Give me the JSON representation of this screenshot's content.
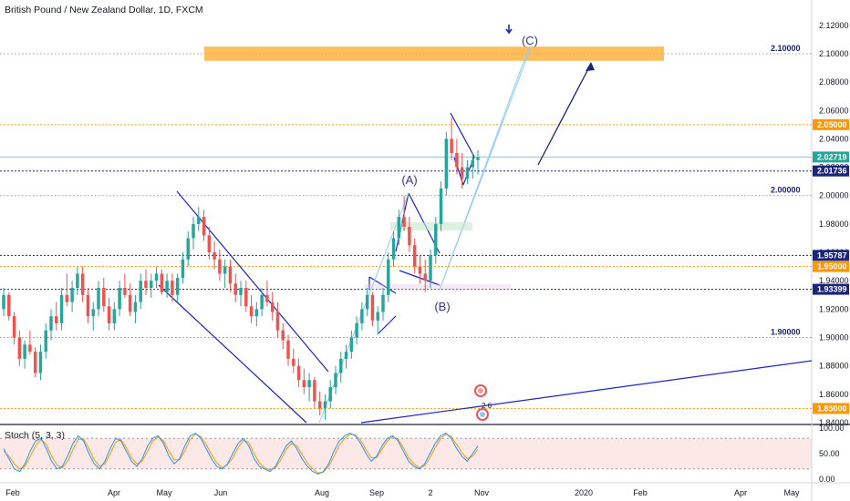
{
  "header": {
    "title": "British Pound / New Zealand Dollar, 1D, FXCM"
  },
  "colors": {
    "bull": "#26a69a",
    "bear": "#ef5350",
    "grid": "#9598a1",
    "orange": "#ff9800",
    "navy": "#1a237e",
    "blue_line": "#1c24c9",
    "light_blue": "#90caf9",
    "stoch_k": "#2196f3",
    "stoch_d": "#ff9800",
    "stoch_band": "#fde8e8"
  },
  "chart_data": {
    "type": "candlestick",
    "instrument": "British Pound / New Zealand Dollar",
    "interval": "1D",
    "source": "FXCM",
    "ylim": [
      1.84,
      2.125
    ],
    "y_ticks": [
      "2.12000",
      "2.10000",
      "2.08000",
      "2.06000",
      "2.04000",
      "2.02000",
      "2.00000",
      "1.98000",
      "1.96000",
      "1.94000",
      "1.92000",
      "1.90000",
      "1.88000",
      "1.86000",
      "1.84000"
    ],
    "x_tick_labels": [
      "Feb",
      "Apr",
      "May",
      "Jun",
      "Aug",
      "Sep",
      "2",
      "Nov",
      "2020",
      "Feb",
      "Apr",
      "May"
    ],
    "horizontal_levels": [
      {
        "value": 2.1,
        "label": "2.10000",
        "style": "dotted-gray",
        "tag": "plain"
      },
      {
        "value": 2.05,
        "label": "2.05000",
        "style": "dotted-orange",
        "tag": "orange"
      },
      {
        "value": 2.02719,
        "label": "2.02719",
        "style": "solid-teal",
        "tag": "teal"
      },
      {
        "value": 2.01736,
        "label": "2.01736",
        "style": "dotted-navy",
        "tag": "navy"
      },
      {
        "value": 2.0,
        "label": "2.00000",
        "style": "dotted-gray",
        "tag": "plain"
      },
      {
        "value": 1.95787,
        "label": "1.95787",
        "style": "dotted-navy",
        "tag": "navy"
      },
      {
        "value": 1.95,
        "label": "1.95000",
        "style": "dotted-orange",
        "tag": "orange"
      },
      {
        "value": 1.93399,
        "label": "1.93399",
        "style": "dotted-navy",
        "tag": "navy"
      },
      {
        "value": 1.9,
        "label": "1.90000",
        "style": "dotted-gray",
        "tag": "plain"
      },
      {
        "value": 1.85,
        "label": "1.85000",
        "style": "dotted-orange",
        "tag": "orange"
      }
    ],
    "target_zone": {
      "y_top": 2.105,
      "y_bottom": 2.095
    },
    "wave_labels": [
      {
        "text": "(A)",
        "price": 2.01
      },
      {
        "text": "(B)",
        "price": 1.92
      },
      {
        "text": "(C)",
        "price": 2.108
      }
    ],
    "extra_label": "2 6",
    "candles_ohlc": [
      [
        1.92,
        1.935,
        1.915,
        1.93
      ],
      [
        1.93,
        1.932,
        1.912,
        1.915
      ],
      [
        1.915,
        1.918,
        1.895,
        1.9
      ],
      [
        1.9,
        1.905,
        1.88,
        1.885
      ],
      [
        1.885,
        1.898,
        1.878,
        1.895
      ],
      [
        1.895,
        1.905,
        1.888,
        1.89
      ],
      [
        1.89,
        1.893,
        1.872,
        1.875
      ],
      [
        1.875,
        1.895,
        1.87,
        1.89
      ],
      [
        1.89,
        1.91,
        1.885,
        1.905
      ],
      [
        1.905,
        1.92,
        1.898,
        1.915
      ],
      [
        1.915,
        1.925,
        1.905,
        1.91
      ],
      [
        1.91,
        1.935,
        1.905,
        1.93
      ],
      [
        1.93,
        1.945,
        1.922,
        1.925
      ],
      [
        1.925,
        1.94,
        1.918,
        1.935
      ],
      [
        1.935,
        1.95,
        1.93,
        1.945
      ],
      [
        1.945,
        1.95,
        1.925,
        1.93
      ],
      [
        1.93,
        1.935,
        1.91,
        1.915
      ],
      [
        1.915,
        1.925,
        1.905,
        1.92
      ],
      [
        1.92,
        1.94,
        1.915,
        1.935
      ],
      [
        1.935,
        1.942,
        1.918,
        1.922
      ],
      [
        1.922,
        1.928,
        1.905,
        1.91
      ],
      [
        1.91,
        1.925,
        1.905,
        1.92
      ],
      [
        1.92,
        1.94,
        1.915,
        1.935
      ],
      [
        1.935,
        1.945,
        1.928,
        1.93
      ],
      [
        1.93,
        1.938,
        1.915,
        1.918
      ],
      [
        1.918,
        1.93,
        1.91,
        1.925
      ],
      [
        1.925,
        1.945,
        1.92,
        1.94
      ],
      [
        1.94,
        1.948,
        1.93,
        1.935
      ],
      [
        1.935,
        1.945,
        1.928,
        1.94
      ],
      [
        1.94,
        1.95,
        1.935,
        1.945
      ],
      [
        1.945,
        1.948,
        1.93,
        1.932
      ],
      [
        1.932,
        1.945,
        1.928,
        1.94
      ],
      [
        1.94,
        1.945,
        1.925,
        1.93
      ],
      [
        1.93,
        1.945,
        1.925,
        1.942
      ],
      [
        1.942,
        1.96,
        1.938,
        1.955
      ],
      [
        1.955,
        1.975,
        1.95,
        1.97
      ],
      [
        1.97,
        1.985,
        1.962,
        1.98
      ],
      [
        1.98,
        1.992,
        1.975,
        1.985
      ],
      [
        1.985,
        1.99,
        1.968,
        1.972
      ],
      [
        1.972,
        1.978,
        1.955,
        1.96
      ],
      [
        1.96,
        1.968,
        1.948,
        1.955
      ],
      [
        1.955,
        1.962,
        1.94,
        1.945
      ],
      [
        1.945,
        1.955,
        1.935,
        1.95
      ],
      [
        1.95,
        1.955,
        1.932,
        1.938
      ],
      [
        1.938,
        1.945,
        1.925,
        1.93
      ],
      [
        1.93,
        1.94,
        1.922,
        1.935
      ],
      [
        1.935,
        1.94,
        1.918,
        1.922
      ],
      [
        1.922,
        1.93,
        1.91,
        1.915
      ],
      [
        1.915,
        1.925,
        1.908,
        1.92
      ],
      [
        1.92,
        1.935,
        1.915,
        1.93
      ],
      [
        1.93,
        1.94,
        1.922,
        1.925
      ],
      [
        1.925,
        1.932,
        1.912,
        1.918
      ],
      [
        1.918,
        1.925,
        1.9,
        1.905
      ],
      [
        1.905,
        1.91,
        1.892,
        1.898
      ],
      [
        1.898,
        1.902,
        1.88,
        1.885
      ],
      [
        1.885,
        1.892,
        1.875,
        1.88
      ],
      [
        1.88,
        1.885,
        1.865,
        1.87
      ],
      [
        1.87,
        1.878,
        1.86,
        1.865
      ],
      [
        1.865,
        1.875,
        1.855,
        1.87
      ],
      [
        1.87,
        1.872,
        1.85,
        1.855
      ],
      [
        1.855,
        1.862,
        1.845,
        1.85
      ],
      [
        1.85,
        1.86,
        1.842,
        1.855
      ],
      [
        1.855,
        1.87,
        1.85,
        1.865
      ],
      [
        1.865,
        1.88,
        1.86,
        1.875
      ],
      [
        1.875,
        1.89,
        1.868,
        1.885
      ],
      [
        1.885,
        1.895,
        1.878,
        1.89
      ],
      [
        1.89,
        1.905,
        1.885,
        1.9
      ],
      [
        1.9,
        1.915,
        1.895,
        1.91
      ],
      [
        1.91,
        1.925,
        1.905,
        1.92
      ],
      [
        1.92,
        1.935,
        1.915,
        1.93
      ],
      [
        1.93,
        1.932,
        1.908,
        1.912
      ],
      [
        1.912,
        1.922,
        1.902,
        1.918
      ],
      [
        1.918,
        1.935,
        1.912,
        1.93
      ],
      [
        1.93,
        1.96,
        1.925,
        1.955
      ],
      [
        1.955,
        1.975,
        1.95,
        1.97
      ],
      [
        1.97,
        1.99,
        1.965,
        1.985
      ],
      [
        1.985,
        2.0,
        1.975,
        1.978
      ],
      [
        1.978,
        1.985,
        1.96,
        1.965
      ],
      [
        1.965,
        1.97,
        1.945,
        1.95
      ],
      [
        1.95,
        1.958,
        1.938,
        1.945
      ],
      [
        1.945,
        1.955,
        1.932,
        1.94
      ],
      [
        1.94,
        1.962,
        1.935,
        1.958
      ],
      [
        1.958,
        1.985,
        1.952,
        1.98
      ],
      [
        1.98,
        2.01,
        1.975,
        2.005
      ],
      [
        2.005,
        2.045,
        2.0,
        2.04
      ],
      [
        2.04,
        2.055,
        2.025,
        2.03
      ],
      [
        2.03,
        2.04,
        2.015,
        2.02
      ],
      [
        2.02,
        2.03,
        2.005,
        2.012
      ],
      [
        2.012,
        2.025,
        2.008,
        2.02
      ],
      [
        2.02,
        2.03,
        2.012,
        2.025
      ],
      [
        2.025,
        2.032,
        2.015,
        2.027
      ]
    ]
  },
  "stoch": {
    "label": "Stoch (5, 3, 3)",
    "ticks": [
      "100.00",
      "50.00",
      "0.00"
    ],
    "upper": 80,
    "lower": 20,
    "k": [
      60,
      40,
      20,
      15,
      30,
      55,
      75,
      80,
      60,
      35,
      20,
      25,
      45,
      70,
      85,
      75,
      50,
      30,
      20,
      35,
      60,
      80,
      75,
      55,
      35,
      25,
      40,
      65,
      80,
      85,
      70,
      45,
      30,
      40,
      65,
      85,
      90,
      80,
      60,
      40,
      25,
      20,
      30,
      50,
      70,
      80,
      65,
      40,
      25,
      20,
      15,
      25,
      45,
      65,
      75,
      60,
      40,
      25,
      15,
      10,
      15,
      30,
      55,
      75,
      85,
      90,
      85,
      70,
      50,
      35,
      45,
      65,
      80,
      85,
      75,
      55,
      35,
      25,
      20,
      30,
      50,
      70,
      85,
      90,
      80,
      60,
      45,
      35,
      50,
      65
    ],
    "d": [
      55,
      45,
      30,
      20,
      25,
      45,
      65,
      78,
      68,
      45,
      28,
      22,
      35,
      58,
      78,
      78,
      60,
      38,
      25,
      30,
      50,
      72,
      78,
      62,
      42,
      30,
      35,
      55,
      75,
      82,
      75,
      55,
      38,
      38,
      55,
      78,
      88,
      84,
      68,
      48,
      32,
      22,
      28,
      42,
      62,
      76,
      72,
      50,
      32,
      22,
      18,
      22,
      38,
      58,
      70,
      66,
      48,
      32,
      20,
      12,
      14,
      25,
      45,
      66,
      80,
      88,
      87,
      76,
      58,
      42,
      42,
      58,
      75,
      83,
      78,
      62,
      42,
      30,
      22,
      26,
      42,
      62,
      80,
      88,
      84,
      68,
      52,
      40,
      45,
      58
    ]
  }
}
